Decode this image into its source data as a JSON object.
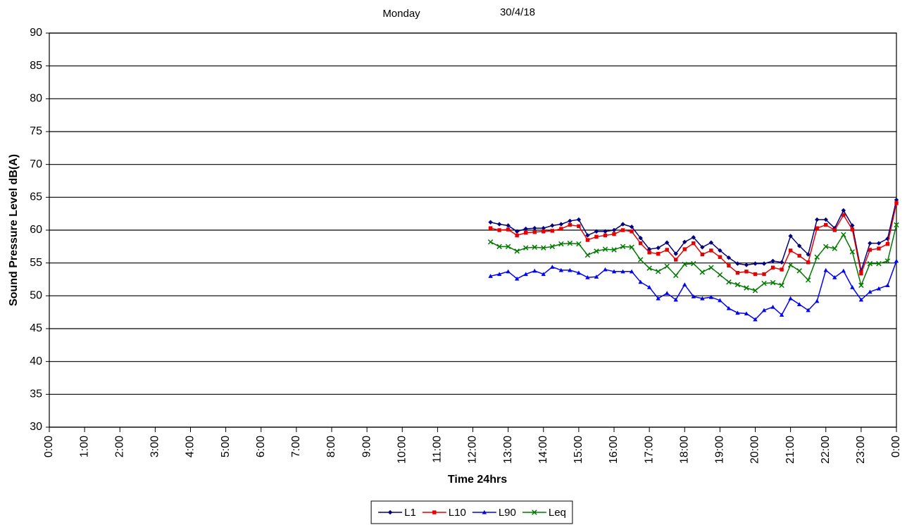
{
  "chart_data": {
    "type": "line",
    "title": "Monday",
    "subtitle": "30/4/18",
    "x_label": "Time 24hrs",
    "y_label": "Sound Pressure Level dB(A)",
    "x": [
      12.5,
      12.75,
      13,
      13.25,
      13.5,
      13.75,
      14,
      14.25,
      14.5,
      14.75,
      15,
      15.25,
      15.5,
      15.75,
      16,
      16.25,
      16.5,
      16.75,
      17,
      17.25,
      17.5,
      17.75,
      18,
      18.25,
      18.5,
      18.75,
      19,
      19.25,
      19.5,
      19.75,
      20,
      20.25,
      20.5,
      20.75,
      21,
      21.25,
      21.5,
      21.75,
      22,
      22.25,
      22.5,
      22.75,
      23,
      23.25,
      23.5,
      23.75,
      24
    ],
    "series": [
      {
        "name": "L1",
        "color": "#000080",
        "marker": "diamond",
        "values": [
          61.2,
          60.9,
          60.7,
          59.8,
          60.2,
          60.3,
          60.3,
          60.7,
          60.9,
          61.4,
          61.6,
          59.2,
          59.8,
          59.8,
          60.0,
          60.9,
          60.5,
          58.8,
          57.1,
          57.3,
          58.1,
          56.4,
          58.2,
          58.9,
          57.4,
          58.1,
          56.9,
          55.8,
          54.9,
          54.7,
          54.9,
          54.9,
          55.3,
          55.1,
          59.1,
          57.6,
          56.3,
          61.6,
          61.6,
          60.3,
          63.0,
          60.7,
          53.8,
          58.0,
          58.0,
          58.7,
          64.6
        ]
      },
      {
        "name": "L10",
        "color": "#e60000",
        "marker": "square",
        "values": [
          60.3,
          60.0,
          60.1,
          59.2,
          59.6,
          59.7,
          59.8,
          59.9,
          60.2,
          60.8,
          60.6,
          58.5,
          59.0,
          59.2,
          59.4,
          60.0,
          59.8,
          58.0,
          56.6,
          56.4,
          57.0,
          55.5,
          57.1,
          58.0,
          56.3,
          56.9,
          55.9,
          54.6,
          53.5,
          53.7,
          53.3,
          53.3,
          54.3,
          54.0,
          56.9,
          56.1,
          55.1,
          60.3,
          60.8,
          60.0,
          62.3,
          60.1,
          53.4,
          57.0,
          57.2,
          57.9,
          64.1
        ]
      },
      {
        "name": "L90",
        "color": "#0000ff",
        "marker": "triangle",
        "values": [
          53.0,
          53.3,
          53.7,
          52.6,
          53.3,
          53.8,
          53.3,
          54.4,
          53.9,
          53.9,
          53.5,
          52.8,
          52.9,
          54.0,
          53.7,
          53.7,
          53.7,
          52.1,
          51.3,
          49.6,
          50.4,
          49.4,
          51.7,
          49.9,
          49.6,
          49.8,
          49.3,
          48.1,
          47.4,
          47.3,
          46.4,
          47.8,
          48.3,
          47.1,
          49.6,
          48.7,
          47.8,
          49.2,
          53.9,
          52.8,
          53.8,
          51.3,
          49.4,
          50.6,
          51.1,
          51.6,
          55.3
        ]
      },
      {
        "name": "Leq",
        "color": "#007a00",
        "marker": "cross",
        "values": [
          58.2,
          57.5,
          57.5,
          56.8,
          57.3,
          57.4,
          57.3,
          57.5,
          57.9,
          58.0,
          57.9,
          56.2,
          56.8,
          57.1,
          57.0,
          57.5,
          57.4,
          55.5,
          54.2,
          53.7,
          54.5,
          53.1,
          54.8,
          54.9,
          53.6,
          54.3,
          53.2,
          52.1,
          51.7,
          51.2,
          50.8,
          51.9,
          52.0,
          51.6,
          54.7,
          53.8,
          52.4,
          55.9,
          57.5,
          57.2,
          59.3,
          56.7,
          51.6,
          54.9,
          54.9,
          55.3,
          60.8
        ]
      }
    ],
    "xlim": [
      0,
      24
    ],
    "xticks": [
      {
        "value": 0,
        "label": "0:00"
      },
      {
        "value": 1,
        "label": "1:00"
      },
      {
        "value": 2,
        "label": "2:00"
      },
      {
        "value": 3,
        "label": "3:00"
      },
      {
        "value": 4,
        "label": "4:00"
      },
      {
        "value": 5,
        "label": "5:00"
      },
      {
        "value": 6,
        "label": "6:00"
      },
      {
        "value": 7,
        "label": "7:00"
      },
      {
        "value": 8,
        "label": "8:00"
      },
      {
        "value": 9,
        "label": "9:00"
      },
      {
        "value": 10,
        "label": "10:00"
      },
      {
        "value": 11,
        "label": "11:00"
      },
      {
        "value": 12,
        "label": "12:00"
      },
      {
        "value": 13,
        "label": "13:00"
      },
      {
        "value": 14,
        "label": "14:00"
      },
      {
        "value": 15,
        "label": "15:00"
      },
      {
        "value": 16,
        "label": "16:00"
      },
      {
        "value": 17,
        "label": "17:00"
      },
      {
        "value": 18,
        "label": "18:00"
      },
      {
        "value": 19,
        "label": "19:00"
      },
      {
        "value": 20,
        "label": "20:00"
      },
      {
        "value": 21,
        "label": "21:00"
      },
      {
        "value": 22,
        "label": "22:00"
      },
      {
        "value": 23,
        "label": "23:00"
      },
      {
        "value": 24,
        "label": "0:00"
      }
    ],
    "ylim": [
      30,
      90
    ],
    "yticks": [
      30,
      35,
      40,
      45,
      50,
      55,
      60,
      65,
      70,
      75,
      80,
      85,
      90
    ],
    "grid": true,
    "legend": "bottom"
  }
}
